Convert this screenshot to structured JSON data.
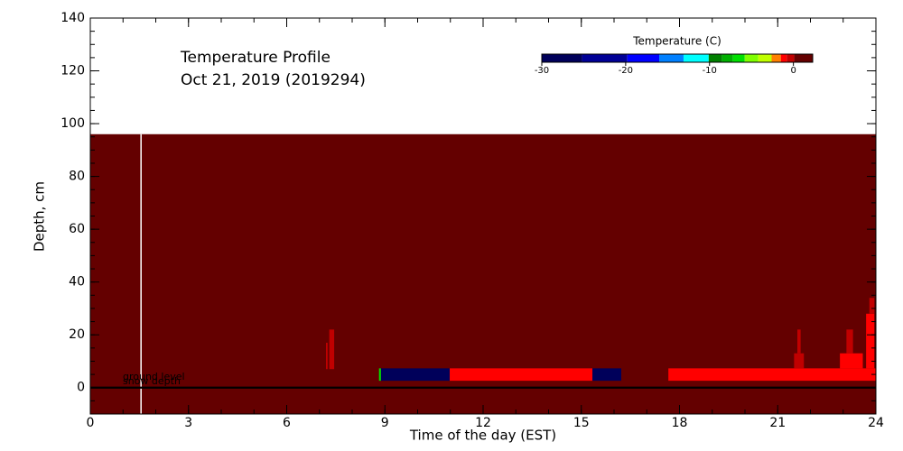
{
  "chart_data": {
    "type": "heatmap",
    "title": "Temperature Profile",
    "subtitle": "Oct 21, 2019 (2019294)",
    "x_label": "Time of the day (EST)",
    "y_label": "Depth, cm",
    "xlim": [
      0,
      24
    ],
    "ylim": [
      -10,
      140
    ],
    "xticks": [
      0,
      3,
      6,
      9,
      12,
      15,
      18,
      21,
      24
    ],
    "yticks": [
      0,
      20,
      40,
      60,
      80,
      100,
      120,
      140
    ],
    "colorbar": {
      "label": "Temperature (C)",
      "bounds": [
        -30,
        -25.2,
        -19.8,
        -16,
        -13.1,
        -10.1,
        -8.5,
        -7.2,
        -5.8,
        -4.2,
        -2.6,
        -1.5,
        -0.8,
        0.1,
        2.3
      ],
      "colors": [
        "#00005a",
        "#000096",
        "#0000ff",
        "#0080ff",
        "#00ffff",
        "#008000",
        "#00b000",
        "#00e000",
        "#80ff00",
        "#c0ff00",
        "#ff8000",
        "#ff0000",
        "#c00000",
        "#640000"
      ],
      "ticks": [
        -30,
        -20,
        -10,
        0
      ]
    },
    "cells": [
      {
        "t0": 0,
        "t1": 24,
        "d0": -10,
        "d1": 96,
        "value": 2
      },
      {
        "t0": 7.2,
        "t1": 7.25,
        "d0": 7,
        "d1": 17,
        "value": 0
      },
      {
        "t0": 7.3,
        "t1": 7.45,
        "d0": 7,
        "d1": 22,
        "value": 0
      },
      {
        "t0": 8.82,
        "t1": 8.88,
        "d0": 2.6,
        "d1": 7.3,
        "value": -7
      },
      {
        "t0": 8.88,
        "t1": 10.98,
        "d0": 2.6,
        "d1": 7.3,
        "value": -28
      },
      {
        "t0": 10.98,
        "t1": 15.34,
        "d0": 2.6,
        "d1": 7.3,
        "value": -1
      },
      {
        "t0": 15.34,
        "t1": 16.22,
        "d0": 2.6,
        "d1": 7.3,
        "value": -28
      },
      {
        "t0": 17.66,
        "t1": 24,
        "d0": 2.6,
        "d1": 7.3,
        "value": -1
      },
      {
        "t0": 21.5,
        "t1": 21.8,
        "d0": 7.3,
        "d1": 13,
        "value": -0.5
      },
      {
        "t0": 21.6,
        "t1": 21.7,
        "d0": 13,
        "d1": 22,
        "value": 0
      },
      {
        "t0": 22.9,
        "t1": 23.6,
        "d0": 7.3,
        "d1": 13,
        "value": -1
      },
      {
        "t0": 23.1,
        "t1": 23.3,
        "d0": 13,
        "d1": 22,
        "value": 0
      },
      {
        "t0": 23.7,
        "t1": 23.95,
        "d0": 7.3,
        "d1": 28,
        "value": -1
      },
      {
        "t0": 23.8,
        "t1": 23.95,
        "d0": 28,
        "d1": 34,
        "value": 0
      }
    ],
    "missing_times": [
      1.55
    ],
    "ground_level": {
      "label": "ground level",
      "depth": 0
    },
    "snow_depth": {
      "label": "snow depth",
      "depth": 0
    }
  }
}
